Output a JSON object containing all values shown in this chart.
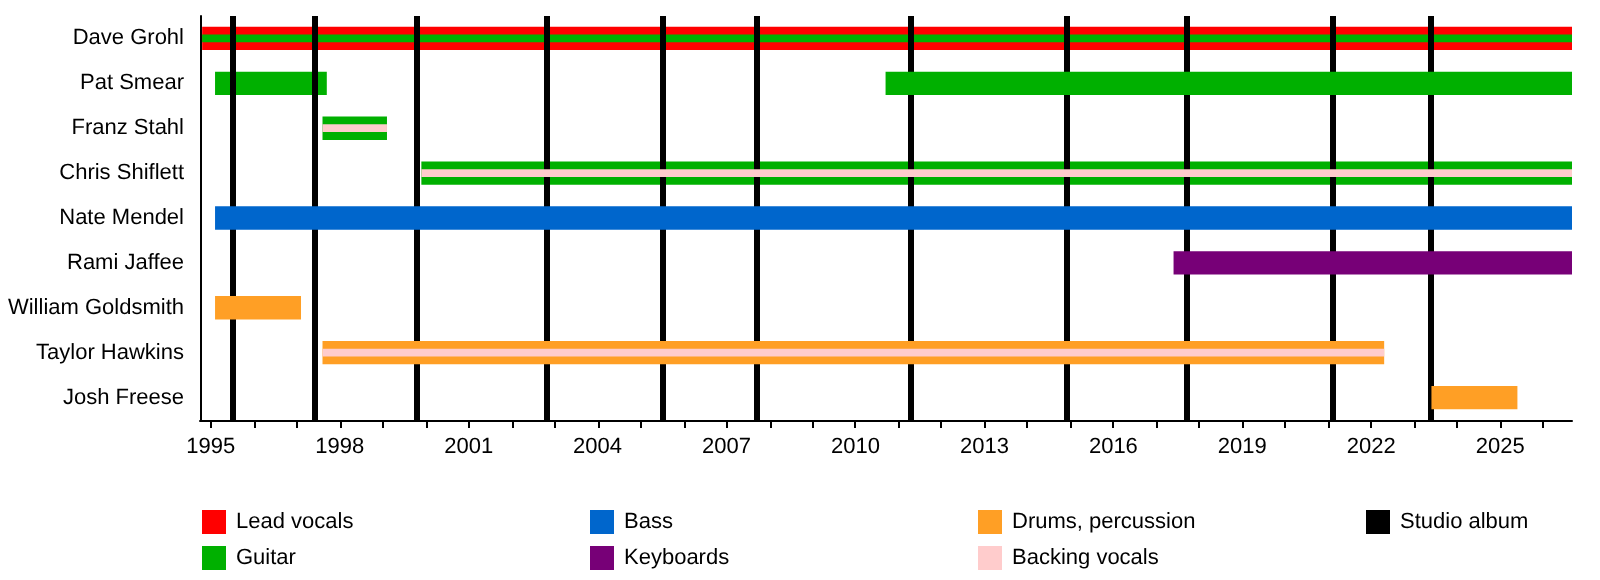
{
  "chart_data": {
    "type": "bar",
    "orientation": "horizontal",
    "categories": [
      "Dave Grohl",
      "Pat Smear",
      "Franz Stahl",
      "Chris Shiflett",
      "Nate Mendel",
      "Rami Jaffee",
      "William Goldsmith",
      "Taylor Hawkins",
      "Josh Freese"
    ],
    "series": [
      {
        "name": "Lead vocals",
        "color": "#ff0000",
        "base": [
          1994.8,
          null,
          null,
          null,
          null,
          null,
          null,
          null,
          null
        ],
        "values": [
          31.87,
          null,
          null,
          null,
          null,
          null,
          null,
          null,
          null
        ]
      },
      {
        "name": "Guitar",
        "color": "#00b000",
        "base": [
          1994.8,
          1995.1,
          1997.6,
          1999.9,
          null,
          null,
          null,
          null,
          null
        ],
        "values": [
          31.87,
          2.6,
          1.5,
          26.77,
          null,
          null,
          null,
          null,
          null
        ]
      },
      {
        "color": "#00b000",
        "base": [
          null,
          2010.7,
          null,
          null,
          null,
          null,
          null,
          null,
          null
        ],
        "values": [
          null,
          15.97,
          null,
          null,
          null,
          null,
          null,
          null,
          null
        ]
      },
      {
        "name": "Bass",
        "color": "#0066cc",
        "base": [
          null,
          null,
          null,
          null,
          1995.1,
          null,
          null,
          null,
          null
        ],
        "values": [
          null,
          null,
          null,
          null,
          31.57,
          null,
          null,
          null,
          null
        ]
      },
      {
        "name": "Keyboards",
        "color": "#770077",
        "base": [
          null,
          null,
          null,
          null,
          null,
          2017.4,
          null,
          null,
          null
        ],
        "values": [
          null,
          null,
          null,
          null,
          null,
          9.27,
          null,
          null,
          null
        ]
      },
      {
        "name": "Drums, percussion",
        "color": "#ff9f25",
        "base": [
          null,
          null,
          null,
          null,
          null,
          null,
          1995.1,
          1997.6,
          2023.4
        ],
        "values": [
          null,
          null,
          null,
          null,
          null,
          null,
          2.0,
          24.7,
          2.0
        ]
      },
      {
        "name": "Backing vocals",
        "color": "#ffcccc",
        "base": [
          null,
          null,
          1997.6,
          1999.9,
          null,
          null,
          null,
          1997.6,
          null
        ],
        "values": [
          null,
          null,
          1.5,
          26.77,
          null,
          null,
          null,
          24.7,
          null
        ]
      }
    ],
    "xlim": [
      1994.75,
      2026.67
    ],
    "xticks": [
      1995,
      {
        "value": 1996,
        "label": null
      },
      {
        "value": 1997,
        "label": null
      },
      1998,
      {
        "value": 1999,
        "label": null
      },
      {
        "value": 2000,
        "label": null
      },
      2001,
      {
        "value": 2002,
        "label": null
      },
      {
        "value": 2003,
        "label": null
      },
      2004,
      {
        "value": 2005,
        "label": null
      },
      {
        "value": 2006,
        "label": null
      },
      2007,
      {
        "value": 2008,
        "label": null
      },
      {
        "value": 2009,
        "label": null
      },
      2010,
      {
        "value": 2011,
        "label": null
      },
      {
        "value": 2012,
        "label": null
      },
      2013,
      {
        "value": 2014,
        "label": null
      },
      {
        "value": 2015,
        "label": null
      },
      2016,
      {
        "value": 2017,
        "label": null
      },
      {
        "value": 2018,
        "label": null
      },
      2019,
      {
        "value": 2020,
        "label": null
      },
      {
        "value": 2021,
        "label": null
      },
      2022,
      {
        "value": 2023,
        "label": null
      },
      {
        "value": 2024,
        "label": null
      },
      2025,
      {
        "value": 2026,
        "label": null
      }
    ],
    "ref_lines": [
      {
        "axis": "x",
        "value": 1995.5,
        "label": "Studio album",
        "color": "#000000"
      },
      {
        "axis": "x",
        "value": 1997.4,
        "color": "#000000"
      },
      {
        "axis": "x",
        "value": 1999.8,
        "color": "#000000"
      },
      {
        "axis": "x",
        "value": 2002.8,
        "color": "#000000"
      },
      {
        "axis": "x",
        "value": 2005.5,
        "color": "#000000"
      },
      {
        "axis": "x",
        "value": 2007.7,
        "color": "#000000"
      },
      {
        "axis": "x",
        "value": 2011.3,
        "color": "#000000"
      },
      {
        "axis": "x",
        "value": 2014.9,
        "color": "#000000"
      },
      {
        "axis": "x",
        "value": 2017.7,
        "color": "#000000"
      },
      {
        "axis": "x",
        "value": 2021.1,
        "color": "#000000"
      },
      {
        "axis": "x",
        "value": 2023.4,
        "color": "#000000"
      }
    ],
    "legend": "bottom"
  }
}
